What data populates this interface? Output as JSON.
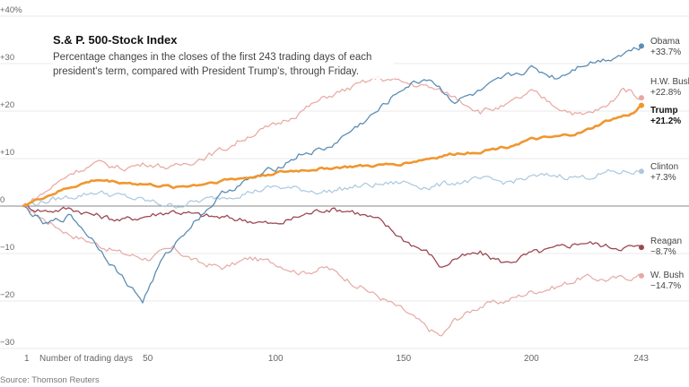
{
  "chart_data": {
    "type": "line",
    "title": "S.& P. 500-Stock Index",
    "subtitle": "Percentage changes in the closes of the first 243 trading days of each president's term, compared with President Trump's, through Friday.",
    "source": "Source: Thomson Reuters",
    "xlabel": "Number of trading days",
    "xticks": [
      1,
      50,
      100,
      150,
      200,
      243
    ],
    "xlim": [
      1,
      243
    ],
    "ylim": [
      -30,
      40
    ],
    "yticks": [
      {
        "value": 40,
        "label": "+40%"
      },
      {
        "value": 30,
        "label": "+30"
      },
      {
        "value": 20,
        "label": "+20"
      },
      {
        "value": 10,
        "label": "+10"
      },
      {
        "value": 0,
        "label": "0"
      },
      {
        "value": -10,
        "label": "−10"
      },
      {
        "value": -20,
        "label": "−20"
      },
      {
        "value": -30,
        "label": "−30"
      }
    ],
    "series": [
      {
        "name": "Obama",
        "final_label": "+33.7%",
        "color": "#5b8db5",
        "width": 1.3,
        "anchors": [
          [
            1,
            0
          ],
          [
            10,
            -4
          ],
          [
            20,
            -2
          ],
          [
            30,
            -8
          ],
          [
            40,
            -15
          ],
          [
            48,
            -20
          ],
          [
            55,
            -12
          ],
          [
            65,
            -5
          ],
          [
            80,
            3
          ],
          [
            100,
            8
          ],
          [
            110,
            11
          ],
          [
            120,
            12
          ],
          [
            130,
            16
          ],
          [
            140,
            20
          ],
          [
            150,
            25
          ],
          [
            160,
            27
          ],
          [
            170,
            22
          ],
          [
            180,
            24
          ],
          [
            190,
            27
          ],
          [
            200,
            29
          ],
          [
            210,
            27
          ],
          [
            220,
            30
          ],
          [
            230,
            31
          ],
          [
            243,
            33.7
          ]
        ]
      },
      {
        "name": "H.W. Bush",
        "final_label": "+22.8%",
        "color": "#e8a7a1",
        "width": 1.2,
        "anchors": [
          [
            1,
            0
          ],
          [
            10,
            3
          ],
          [
            20,
            7
          ],
          [
            30,
            9
          ],
          [
            40,
            8
          ],
          [
            50,
            9
          ],
          [
            60,
            8
          ],
          [
            70,
            10
          ],
          [
            80,
            12
          ],
          [
            90,
            15
          ],
          [
            100,
            17
          ],
          [
            110,
            20
          ],
          [
            120,
            23
          ],
          [
            130,
            25
          ],
          [
            140,
            27
          ],
          [
            150,
            26
          ],
          [
            160,
            25
          ],
          [
            170,
            23
          ],
          [
            180,
            20
          ],
          [
            190,
            21
          ],
          [
            200,
            24
          ],
          [
            210,
            21
          ],
          [
            220,
            19
          ],
          [
            230,
            21
          ],
          [
            236,
            25
          ],
          [
            243,
            22.8
          ]
        ]
      },
      {
        "name": "Trump",
        "final_label": "+21.2%",
        "color": "#f0962f",
        "width": 2.6,
        "bold": true,
        "anchors": [
          [
            1,
            0
          ],
          [
            10,
            2
          ],
          [
            20,
            4
          ],
          [
            30,
            5.5
          ],
          [
            40,
            5
          ],
          [
            50,
            4.5
          ],
          [
            60,
            4
          ],
          [
            70,
            4.5
          ],
          [
            80,
            5.5
          ],
          [
            90,
            6
          ],
          [
            100,
            7
          ],
          [
            110,
            7.5
          ],
          [
            120,
            8
          ],
          [
            130,
            8.3
          ],
          [
            140,
            8.5
          ],
          [
            150,
            9
          ],
          [
            160,
            10
          ],
          [
            170,
            11
          ],
          [
            180,
            11.5
          ],
          [
            190,
            12.5
          ],
          [
            200,
            14
          ],
          [
            210,
            14.5
          ],
          [
            220,
            15.5
          ],
          [
            230,
            18
          ],
          [
            240,
            19.5
          ],
          [
            243,
            21.2
          ]
        ]
      },
      {
        "name": "Clinton",
        "final_label": "+7.3%",
        "color": "#a9c8df",
        "width": 1.2,
        "anchors": [
          [
            1,
            0
          ],
          [
            10,
            1
          ],
          [
            20,
            2
          ],
          [
            30,
            3
          ],
          [
            40,
            2
          ],
          [
            50,
            1
          ],
          [
            60,
            0
          ],
          [
            70,
            1
          ],
          [
            80,
            2
          ],
          [
            90,
            3
          ],
          [
            100,
            4
          ],
          [
            110,
            3.5
          ],
          [
            120,
            3
          ],
          [
            130,
            4
          ],
          [
            140,
            4.5
          ],
          [
            150,
            5
          ],
          [
            160,
            4
          ],
          [
            170,
            5
          ],
          [
            180,
            5.5
          ],
          [
            190,
            5
          ],
          [
            200,
            6
          ],
          [
            210,
            6.5
          ],
          [
            220,
            6
          ],
          [
            230,
            7
          ],
          [
            243,
            7.3
          ]
        ]
      },
      {
        "name": "Reagan",
        "final_label": "−8.7%",
        "color": "#9b4852",
        "width": 1.3,
        "anchors": [
          [
            1,
            0
          ],
          [
            10,
            -1
          ],
          [
            20,
            -0.5
          ],
          [
            30,
            -2
          ],
          [
            40,
            -3
          ],
          [
            50,
            -2
          ],
          [
            60,
            -1
          ],
          [
            70,
            -2
          ],
          [
            80,
            -2.5
          ],
          [
            90,
            -3
          ],
          [
            100,
            -4
          ],
          [
            110,
            -2
          ],
          [
            120,
            -0.5
          ],
          [
            130,
            -1
          ],
          [
            140,
            -3
          ],
          [
            150,
            -7
          ],
          [
            160,
            -10
          ],
          [
            165,
            -13
          ],
          [
            170,
            -11
          ],
          [
            180,
            -10
          ],
          [
            190,
            -12
          ],
          [
            200,
            -10
          ],
          [
            210,
            -9
          ],
          [
            220,
            -7.5
          ],
          [
            230,
            -8.5
          ],
          [
            243,
            -8.7
          ]
        ]
      },
      {
        "name": "W. Bush",
        "final_label": "−14.7%",
        "color": "#e5aaa5",
        "width": 1.2,
        "anchors": [
          [
            1,
            0
          ],
          [
            10,
            -3
          ],
          [
            20,
            -6
          ],
          [
            30,
            -8
          ],
          [
            40,
            -10
          ],
          [
            50,
            -11
          ],
          [
            60,
            -9
          ],
          [
            70,
            -12
          ],
          [
            80,
            -13
          ],
          [
            90,
            -11
          ],
          [
            100,
            -12
          ],
          [
            110,
            -14
          ],
          [
            120,
            -13
          ],
          [
            130,
            -16
          ],
          [
            140,
            -19
          ],
          [
            150,
            -22
          ],
          [
            160,
            -26
          ],
          [
            165,
            -27.5
          ],
          [
            170,
            -24
          ],
          [
            180,
            -21
          ],
          [
            190,
            -20
          ],
          [
            200,
            -18
          ],
          [
            210,
            -17
          ],
          [
            220,
            -15
          ],
          [
            230,
            -15.5
          ],
          [
            243,
            -14.7
          ]
        ]
      }
    ]
  }
}
